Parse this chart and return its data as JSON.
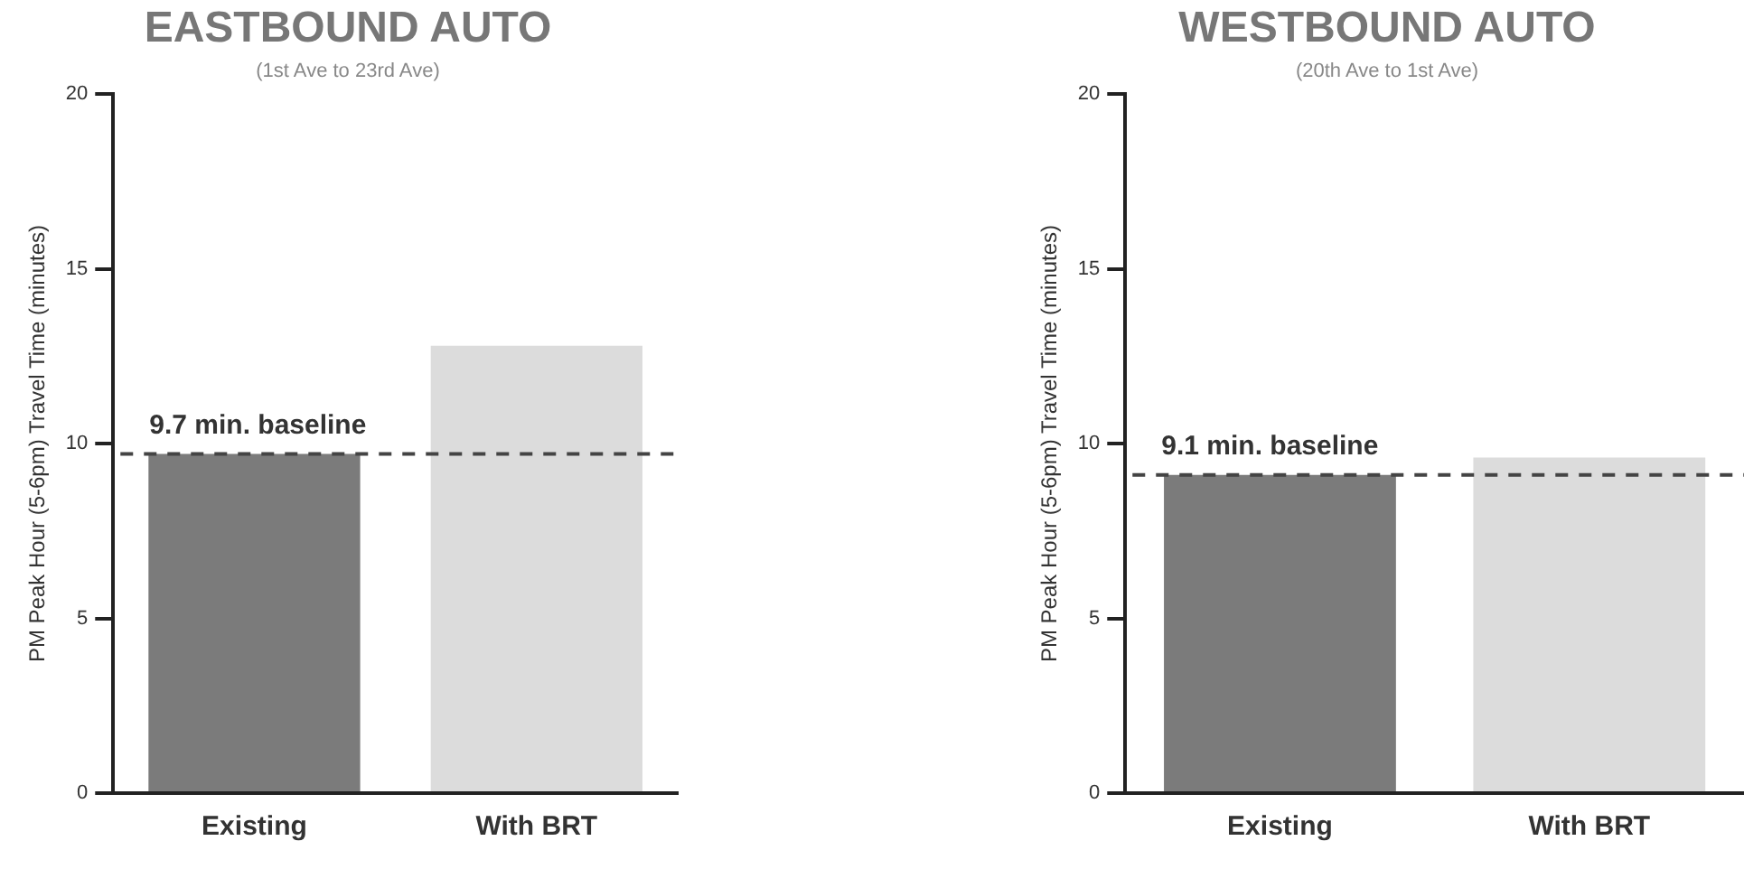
{
  "chart_data": [
    {
      "type": "bar",
      "title": "EASTBOUND AUTO",
      "subtitle": "(1st Ave to 23rd Ave)",
      "ylabel": "PM Peak Hour (5-6pm) Travel Time (minutes)",
      "categories": [
        "Existing",
        "With BRT"
      ],
      "values": [
        9.7,
        12.8
      ],
      "colors": [
        "#7b7b7b",
        "#dcdcdc"
      ],
      "ylim": [
        0,
        20
      ],
      "yticks": [
        0,
        5,
        10,
        15,
        20
      ],
      "grid": false,
      "legend": false,
      "ref_lines": [
        {
          "axis": "y",
          "value": 9.7,
          "label": "9.7 min. baseline",
          "color": "#444444",
          "line_style": "dashed"
        }
      ]
    },
    {
      "type": "bar",
      "title": "WESTBOUND AUTO",
      "subtitle": "(20th Ave to 1st Ave)",
      "ylabel": "PM Peak Hour (5-6pm) Travel Time (minutes)",
      "categories": [
        "Existing",
        "With BRT"
      ],
      "values": [
        9.1,
        9.6
      ],
      "colors": [
        "#7b7b7b",
        "#dcdcdc"
      ],
      "ylim": [
        0,
        20
      ],
      "yticks": [
        0,
        5,
        10,
        15,
        20
      ],
      "grid": false,
      "legend": false,
      "ref_lines": [
        {
          "axis": "y",
          "value": 9.1,
          "label": "9.1 min. baseline",
          "color": "#444444",
          "line_style": "dashed"
        }
      ]
    }
  ]
}
